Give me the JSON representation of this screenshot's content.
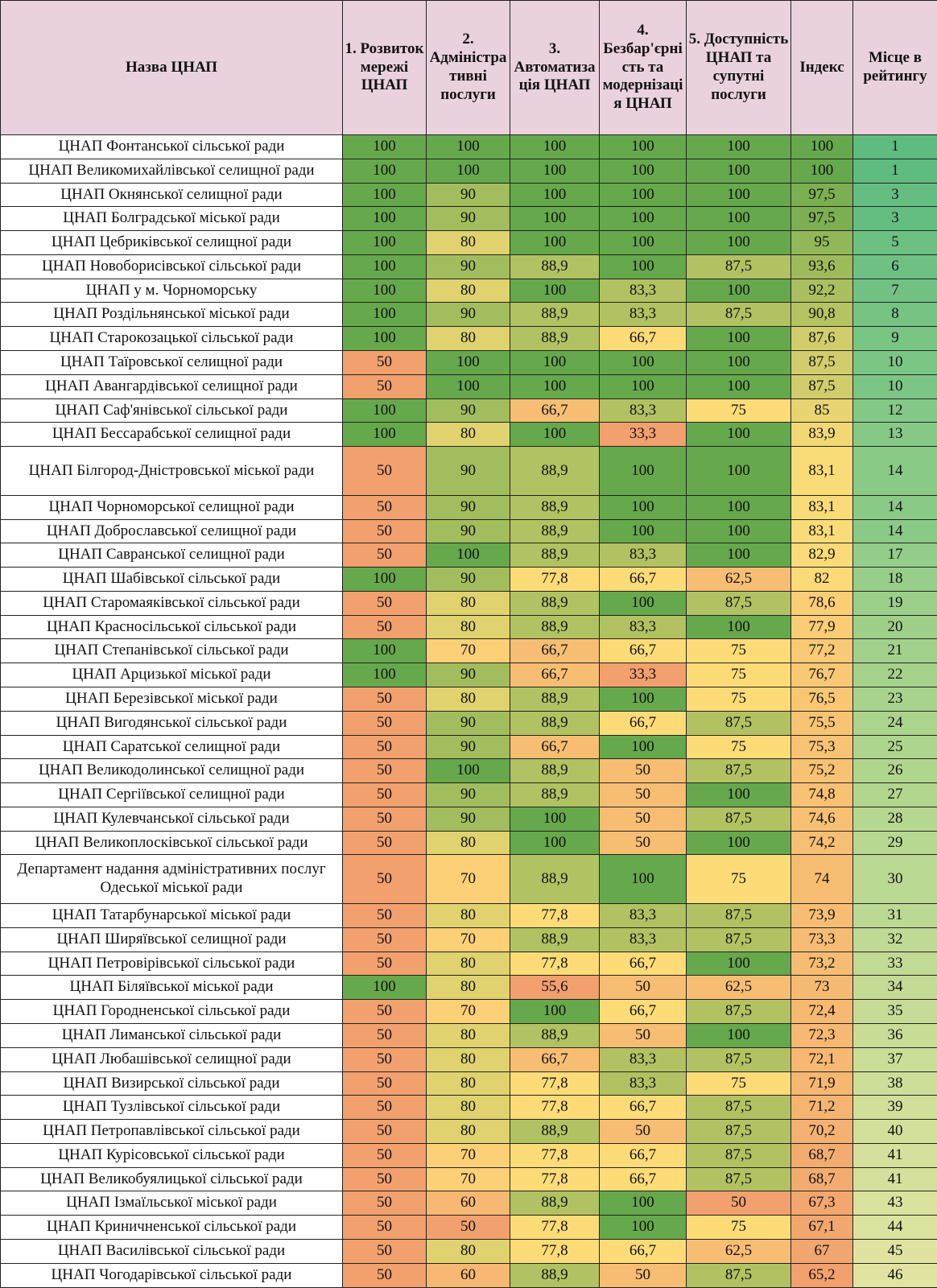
{
  "table": {
    "header": [
      "Назва ЦНАП",
      "1. Розвиток мережі ЦНАП",
      "2. Адміністративні послуги",
      "3. Автоматизація ЦНАП",
      "4. Безбар'єрність та модернізація ЦНАП",
      "5. Доступність ЦНАП та супутні послуги",
      "Індекс",
      "Місце в рейтингу"
    ],
    "rows": [
      [
        "ЦНАП Фонтанської сільської ради",
        "100",
        "100",
        "100",
        "100",
        "100",
        "100",
        "1"
      ],
      [
        "ЦНАП Великомихайлівської селищної ради",
        "100",
        "100",
        "100",
        "100",
        "100",
        "100",
        "1"
      ],
      [
        "ЦНАП Окнянської селищної ради",
        "100",
        "90",
        "100",
        "100",
        "100",
        "97,5",
        "3"
      ],
      [
        "ЦНАП Болградської міської ради",
        "100",
        "90",
        "100",
        "100",
        "100",
        "97,5",
        "3"
      ],
      [
        "ЦНАП Цебриківської селищної ради",
        "100",
        "80",
        "100",
        "100",
        "100",
        "95",
        "5"
      ],
      [
        "ЦНАП Новоборисівської сільської ради",
        "100",
        "90",
        "88,9",
        "100",
        "87,5",
        "93,6",
        "6"
      ],
      [
        "ЦНАП у м. Чорноморську",
        "100",
        "80",
        "100",
        "83,3",
        "100",
        "92,2",
        "7"
      ],
      [
        "ЦНАП Роздільнянської міської ради",
        "100",
        "90",
        "88,9",
        "83,3",
        "87,5",
        "90,8",
        "8"
      ],
      [
        "ЦНАП Старокозацької сільської ради",
        "100",
        "80",
        "88,9",
        "66,7",
        "100",
        "87,6",
        "9"
      ],
      [
        "ЦНАП Таїровської селищної ради",
        "50",
        "100",
        "100",
        "100",
        "100",
        "87,5",
        "10"
      ],
      [
        "ЦНАП Авангардівської селищної ради",
        "50",
        "100",
        "100",
        "100",
        "100",
        "87,5",
        "10"
      ],
      [
        "ЦНАП Саф'янівської сільської ради",
        "100",
        "90",
        "66,7",
        "83,3",
        "75",
        "85",
        "12"
      ],
      [
        "ЦНАП Бессарабської селищної ради",
        "100",
        "80",
        "100",
        "33,3",
        "100",
        "83,9",
        "13"
      ],
      [
        "ЦНАП Білгород-Дністровської міської ради",
        "50",
        "90",
        "88,9",
        "100",
        "100",
        "83,1",
        "14"
      ],
      [
        "ЦНАП Чорноморської селищної ради",
        "50",
        "90",
        "88,9",
        "100",
        "100",
        "83,1",
        "14"
      ],
      [
        "ЦНАП Доброславської селищної ради",
        "50",
        "90",
        "88,9",
        "100",
        "100",
        "83,1",
        "14"
      ],
      [
        "ЦНАП Савранської селищної ради",
        "50",
        "100",
        "88,9",
        "83,3",
        "100",
        "82,9",
        "17"
      ],
      [
        "ЦНАП Шабівської сільської ради",
        "100",
        "90",
        "77,8",
        "66,7",
        "62,5",
        "82",
        "18"
      ],
      [
        "ЦНАП Старомаяківської сільської ради",
        "50",
        "80",
        "88,9",
        "100",
        "87,5",
        "78,6",
        "19"
      ],
      [
        "ЦНАП Красносільської сільської ради",
        "50",
        "80",
        "88,9",
        "83,3",
        "100",
        "77,9",
        "20"
      ],
      [
        "ЦНАП Степанівської сільської ради",
        "100",
        "70",
        "66,7",
        "66,7",
        "75",
        "77,2",
        "21"
      ],
      [
        "ЦНАП Арцизької міської ради",
        "100",
        "90",
        "66,7",
        "33,3",
        "75",
        "76,7",
        "22"
      ],
      [
        "ЦНАП Березівської міської ради",
        "50",
        "80",
        "88,9",
        "100",
        "75",
        "76,5",
        "23"
      ],
      [
        "ЦНАП Вигодянської сільської ради",
        "50",
        "90",
        "88,9",
        "66,7",
        "87,5",
        "75,5",
        "24"
      ],
      [
        "ЦНАП Саратської селищної ради",
        "50",
        "90",
        "66,7",
        "100",
        "75",
        "75,3",
        "25"
      ],
      [
        "ЦНАП Великодолинської селищної ради",
        "50",
        "100",
        "88,9",
        "50",
        "87,5",
        "75,2",
        "26"
      ],
      [
        "ЦНАП Сергіївської селищної ради",
        "50",
        "90",
        "88,9",
        "50",
        "100",
        "74,8",
        "27"
      ],
      [
        "ЦНАП Кулевчанської сільської ради",
        "50",
        "90",
        "100",
        "50",
        "87,5",
        "74,6",
        "28"
      ],
      [
        "ЦНАП Великоплосківської сільської ради",
        "50",
        "80",
        "100",
        "50",
        "100",
        "74,2",
        "29"
      ],
      [
        "Департамент надання адміністративних послуг Одеської міської ради",
        "50",
        "70",
        "88,9",
        "100",
        "75",
        "74",
        "30"
      ],
      [
        "ЦНАП Татарбунарської міської ради",
        "50",
        "80",
        "77,8",
        "83,3",
        "87,5",
        "73,9",
        "31"
      ],
      [
        "ЦНАП Ширяївської селищної ради",
        "50",
        "70",
        "88,9",
        "83,3",
        "87,5",
        "73,3",
        "32"
      ],
      [
        "ЦНАП Петровірівської сільської ради",
        "50",
        "80",
        "77,8",
        "66,7",
        "100",
        "73,2",
        "33"
      ],
      [
        "ЦНАП Біляївської міської ради",
        "100",
        "80",
        "55,6",
        "50",
        "62,5",
        "73",
        "34"
      ],
      [
        "ЦНАП Городненської сільської ради",
        "50",
        "70",
        "100",
        "66,7",
        "87,5",
        "72,4",
        "35"
      ],
      [
        "ЦНАП Лиманської сільської ради",
        "50",
        "80",
        "88,9",
        "50",
        "100",
        "72,3",
        "36"
      ],
      [
        "ЦНАП Любашівської селищної ради",
        "50",
        "80",
        "66,7",
        "83,3",
        "87,5",
        "72,1",
        "37"
      ],
      [
        "ЦНАП Визирської сільської ради",
        "50",
        "80",
        "77,8",
        "83,3",
        "75",
        "71,9",
        "38"
      ],
      [
        "ЦНАП Тузлівської сільської ради",
        "50",
        "80",
        "77,8",
        "66,7",
        "87,5",
        "71,2",
        "39"
      ],
      [
        "ЦНАП Петропавлівської сільської ради",
        "50",
        "80",
        "88,9",
        "50",
        "87,5",
        "70,2",
        "40"
      ],
      [
        "ЦНАП Курісовської сільської ради",
        "50",
        "70",
        "77,8",
        "66,7",
        "87,5",
        "68,7",
        "41"
      ],
      [
        "ЦНАП Великобуялицької сільської ради",
        "50",
        "70",
        "77,8",
        "66,7",
        "87,5",
        "68,7",
        "41"
      ],
      [
        "ЦНАП Ізмаїльської міської ради",
        "50",
        "60",
        "88,9",
        "100",
        "50",
        "67,3",
        "43"
      ],
      [
        "ЦНАП Криничненської сільської ради",
        "50",
        "50",
        "77,8",
        "100",
        "75",
        "67,1",
        "44"
      ],
      [
        "ЦНАП Василівської сільської ради",
        "50",
        "80",
        "77,8",
        "66,7",
        "62,5",
        "67",
        "45"
      ],
      [
        "ЦНАП Чогодарівської сільської ради",
        "50",
        "60",
        "88,9",
        "50",
        "87,5",
        "65,2",
        "46"
      ]
    ]
  }
}
